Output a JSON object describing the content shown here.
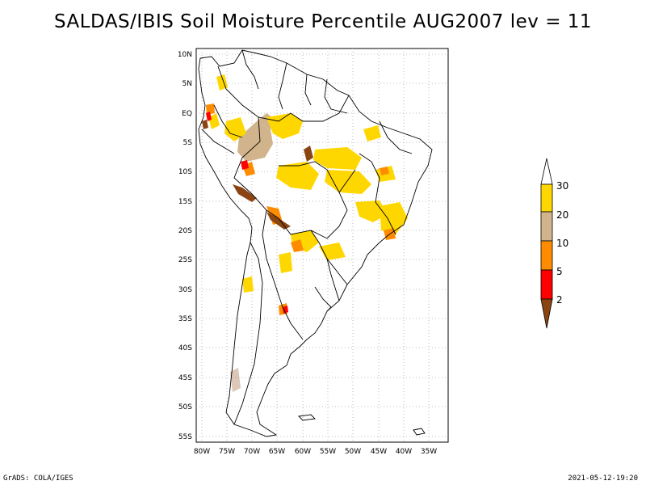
{
  "title": "SALDAS/IBIS Soil Moisture Percentile AUG2007 lev = 11",
  "footer": {
    "left": "GrADS: COLA/IGES",
    "right": "2021-05-12-19:20"
  },
  "map": {
    "lon_ticks": [
      "80W",
      "75W",
      "70W",
      "65W",
      "60W",
      "55W",
      "50W",
      "45W",
      "40W",
      "35W"
    ],
    "lat_ticks": [
      "10N",
      "5N",
      "EQ",
      "5S",
      "10S",
      "15S",
      "20S",
      "25S",
      "30S",
      "35S",
      "40S",
      "45S",
      "50S",
      "55S"
    ],
    "lon_range": [
      -81,
      -33
    ],
    "lat_range": [
      -56,
      12
    ],
    "gridlines": true
  },
  "legend": {
    "levels": [
      "2",
      "5",
      "10",
      "20",
      "30"
    ],
    "colors": {
      "below_2": "#8b4513",
      "2_5": "#ff0000",
      "5_10": "#ff8c00",
      "10_20": "#d2b48c",
      "20_30": "#ffd700",
      "above_30": "#ffffff"
    }
  }
}
